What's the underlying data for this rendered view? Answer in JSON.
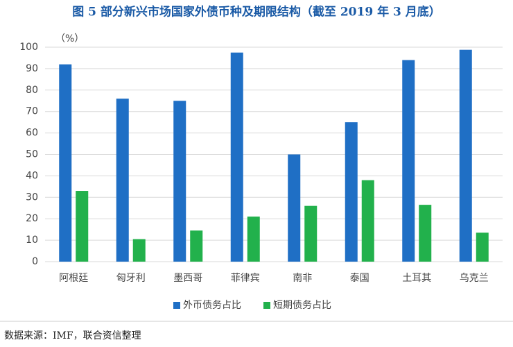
{
  "chart_data": {
    "type": "bar",
    "title": "图 5  部分新兴市场国家外债币种及期限结构（截至 2019 年 3 月底）",
    "y_label": "（%）",
    "categories": [
      "阿根廷",
      "匈牙利",
      "墨西哥",
      "菲律宾",
      "南非",
      "泰国",
      "土耳其",
      "乌克兰"
    ],
    "series": [
      {
        "name": "外币债务占比",
        "color": "#1f6fc5",
        "values": [
          92,
          76,
          75,
          97.5,
          50,
          65,
          94,
          98.8
        ]
      },
      {
        "name": "短期债务占比",
        "color": "#22b14c",
        "values": [
          33,
          10.5,
          14.5,
          21,
          26,
          38,
          26.5,
          13.5
        ]
      }
    ],
    "ylim": [
      0,
      100
    ],
    "yticks": [
      0,
      10,
      20,
      30,
      40,
      50,
      60,
      70,
      80,
      90,
      100
    ],
    "grid": true,
    "legend": "bottom",
    "source": "数据来源：IMF，联合资信整理"
  }
}
